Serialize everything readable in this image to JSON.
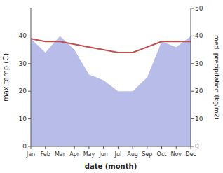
{
  "chart_data": {
    "type": "line",
    "xlabel": "date (month)",
    "ylabel": "max temp (C)",
    "y2label": "med. precipitation (kg/m2)",
    "categories": [
      "Jan",
      "Feb",
      "Mar",
      "Apr",
      "May",
      "Jun",
      "Jul",
      "Aug",
      "Sep",
      "Oct",
      "Nov",
      "Dec"
    ],
    "series": [
      {
        "type": "area",
        "axis": "y2",
        "color": "#b8bce8",
        "values": [
          39,
          34,
          40,
          35,
          26,
          24,
          20,
          20,
          25,
          38,
          36,
          40
        ]
      },
      {
        "type": "line",
        "color": "#c05050",
        "values": [
          39,
          38,
          38,
          37,
          36,
          35,
          34,
          34,
          36,
          38,
          38,
          38
        ]
      }
    ],
    "ylim": [
      0,
      50
    ],
    "yticks": [
      0,
      10,
      20,
      30,
      40
    ],
    "y2lim": [
      0,
      50
    ],
    "y2ticks": [
      0,
      10,
      20,
      30,
      40,
      50
    ],
    "grid": false
  }
}
